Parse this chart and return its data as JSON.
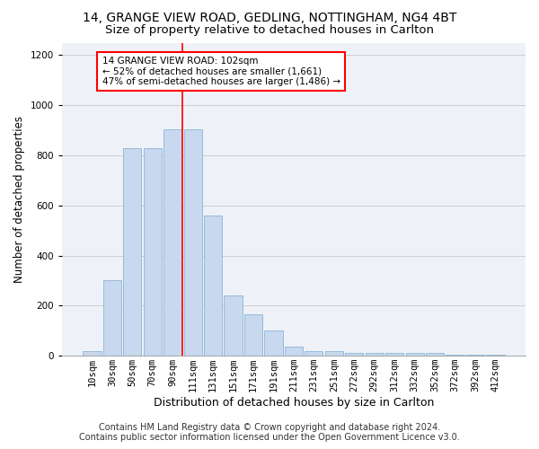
{
  "title1": "14, GRANGE VIEW ROAD, GEDLING, NOTTINGHAM, NG4 4BT",
  "title2": "Size of property relative to detached houses in Carlton",
  "xlabel": "Distribution of detached houses by size in Carlton",
  "ylabel": "Number of detached properties",
  "footer1": "Contains HM Land Registry data © Crown copyright and database right 2024.",
  "footer2": "Contains public sector information licensed under the Open Government Licence v3.0.",
  "categories": [
    "10sqm",
    "30sqm",
    "50sqm",
    "70sqm",
    "90sqm",
    "111sqm",
    "131sqm",
    "151sqm",
    "171sqm",
    "191sqm",
    "211sqm",
    "231sqm",
    "251sqm",
    "272sqm",
    "292sqm",
    "312sqm",
    "332sqm",
    "352sqm",
    "372sqm",
    "392sqm",
    "412sqm"
  ],
  "values": [
    20,
    300,
    830,
    830,
    905,
    905,
    560,
    240,
    165,
    100,
    35,
    20,
    20,
    10,
    10,
    10,
    10,
    10,
    5,
    5,
    5
  ],
  "bar_color": "#c8d8ee",
  "bar_edge_color": "#8ab4d8",
  "property_line_color": "red",
  "annotation_line1": "14 GRANGE VIEW ROAD: 102sqm",
  "annotation_line2": "← 52% of detached houses are smaller (1,661)",
  "annotation_line3": "47% of semi-detached houses are larger (1,486) →",
  "annotation_box_color": "white",
  "annotation_box_edge_color": "red",
  "ylim": [
    0,
    1250
  ],
  "yticks": [
    0,
    200,
    400,
    600,
    800,
    1000,
    1200
  ],
  "background_color": "white",
  "plot_bg_color": "#eef2f8",
  "grid_color": "#c8c8c8",
  "title1_fontsize": 10,
  "title2_fontsize": 9.5,
  "xlabel_fontsize": 9,
  "ylabel_fontsize": 8.5,
  "tick_fontsize": 7.5,
  "footer_fontsize": 7
}
